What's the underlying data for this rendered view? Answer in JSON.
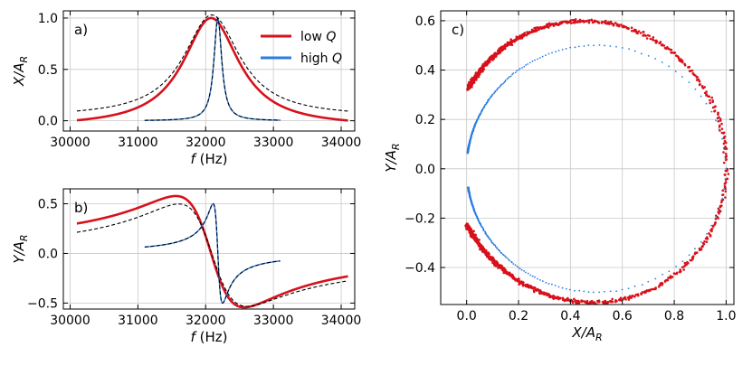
{
  "colors": {
    "low_q": "#d7111b",
    "high_q": "#2b7de0",
    "fit": "#000000",
    "grid": "#c8c8c8"
  },
  "chart_data": [
    {
      "id": "a",
      "type": "line",
      "panel_label": "a)",
      "xlabel_var": "f",
      "xlabel_unit": "(Hz)",
      "ylabel_var": "X",
      "ylabel_sub": "R",
      "xlim": [
        29900,
        34200
      ],
      "ylim": [
        -0.1,
        1.07
      ],
      "xticks": [
        30000,
        31000,
        32000,
        33000,
        34000
      ],
      "xtick_labels": [
        "30000",
        "31000",
        "32000",
        "33000",
        "34000"
      ],
      "yticks": [
        0,
        0.5,
        1
      ],
      "ytick_labels": [
        "0.0",
        "0.5",
        "1.0"
      ],
      "legend_position": "top-right",
      "series": [
        {
          "name": "low",
          "name_italic": "Q",
          "color": "#d7111b",
          "kind": "data",
          "f0": 32080,
          "gamma": 505,
          "range": [
            30100,
            34100
          ]
        },
        {
          "name": "high",
          "name_italic": "Q",
          "color": "#2b7de0",
          "kind": "data",
          "f0": 32180,
          "gamma": 70,
          "range": [
            31100,
            33100
          ]
        },
        {
          "name": "fit low",
          "color": "#000000",
          "kind": "fit",
          "f0": 32090,
          "gamma": 505,
          "amp": 1.03,
          "offset": 0.035,
          "range": [
            30100,
            34100
          ]
        },
        {
          "name": "fit high",
          "color": "#000000",
          "kind": "fit",
          "f0": 32180,
          "gamma": 70,
          "amp": 1.0,
          "offset": 0.0,
          "range": [
            31100,
            33100
          ]
        }
      ]
    },
    {
      "id": "b",
      "type": "line",
      "panel_label": "b)",
      "xlabel_var": "f",
      "xlabel_unit": "(Hz)",
      "ylabel_var": "Y",
      "ylabel_sub": "R",
      "xlim": [
        29900,
        34200
      ],
      "ylim": [
        -0.56,
        0.65
      ],
      "xticks": [
        30000,
        31000,
        32000,
        33000,
        34000
      ],
      "xtick_labels": [
        "30000",
        "31000",
        "32000",
        "33000",
        "34000"
      ],
      "yticks": [
        -0.5,
        0,
        0.5
      ],
      "ytick_labels": [
        "−0.5",
        "0.0",
        "0.5"
      ],
      "series": [
        {
          "name": "low",
          "color": "#d7111b",
          "kind": "data",
          "f0": 32080,
          "gamma": 505,
          "range": [
            30100,
            34100
          ]
        },
        {
          "name": "high",
          "color": "#2b7de0",
          "kind": "data",
          "f0": 32180,
          "gamma": 70,
          "range": [
            31100,
            33100
          ]
        },
        {
          "name": "fit low",
          "color": "#000000",
          "kind": "fit",
          "f0": 32090,
          "gamma": 505,
          "amp": 1.03,
          "offset": -0.035,
          "range": [
            30100,
            34100
          ]
        },
        {
          "name": "fit high",
          "color": "#000000",
          "kind": "fit",
          "f0": 32180,
          "gamma": 70,
          "amp": 1.0,
          "offset": 0.0,
          "range": [
            31100,
            33100
          ]
        }
      ]
    },
    {
      "id": "c",
      "type": "scatter",
      "panel_label": "c)",
      "xlabel_var": "X",
      "xlabel_sub": "R",
      "ylabel_var": "Y",
      "ylabel_sub": "R",
      "xlim": [
        -0.1,
        1.03
      ],
      "ylim": [
        -0.55,
        0.64
      ],
      "xticks": [
        0,
        0.2,
        0.4,
        0.6,
        0.8,
        1.0
      ],
      "xtick_labels": [
        "0.0",
        "0.2",
        "0.4",
        "0.6",
        "0.8",
        "1.0"
      ],
      "yticks": [
        -0.4,
        -0.2,
        0,
        0.2,
        0.4,
        0.6
      ],
      "ytick_labels": [
        "−0.4",
        "−0.2",
        "0.0",
        "0.2",
        "0.4",
        "0.6"
      ],
      "series": [
        {
          "name": "low Q",
          "color": "#d7111b",
          "kind": "data",
          "f0": 32080,
          "gamma": 505,
          "range": [
            30100,
            34100
          ],
          "center_x": 0.47,
          "center_y": 0.03,
          "radius": 0.54
        },
        {
          "name": "high Q",
          "color": "#2b7de0",
          "kind": "data",
          "f0": 32180,
          "gamma": 70,
          "range": [
            31100,
            33100
          ],
          "center_x": 0.5,
          "center_y": 0.0,
          "radius": 0.5
        }
      ]
    }
  ]
}
